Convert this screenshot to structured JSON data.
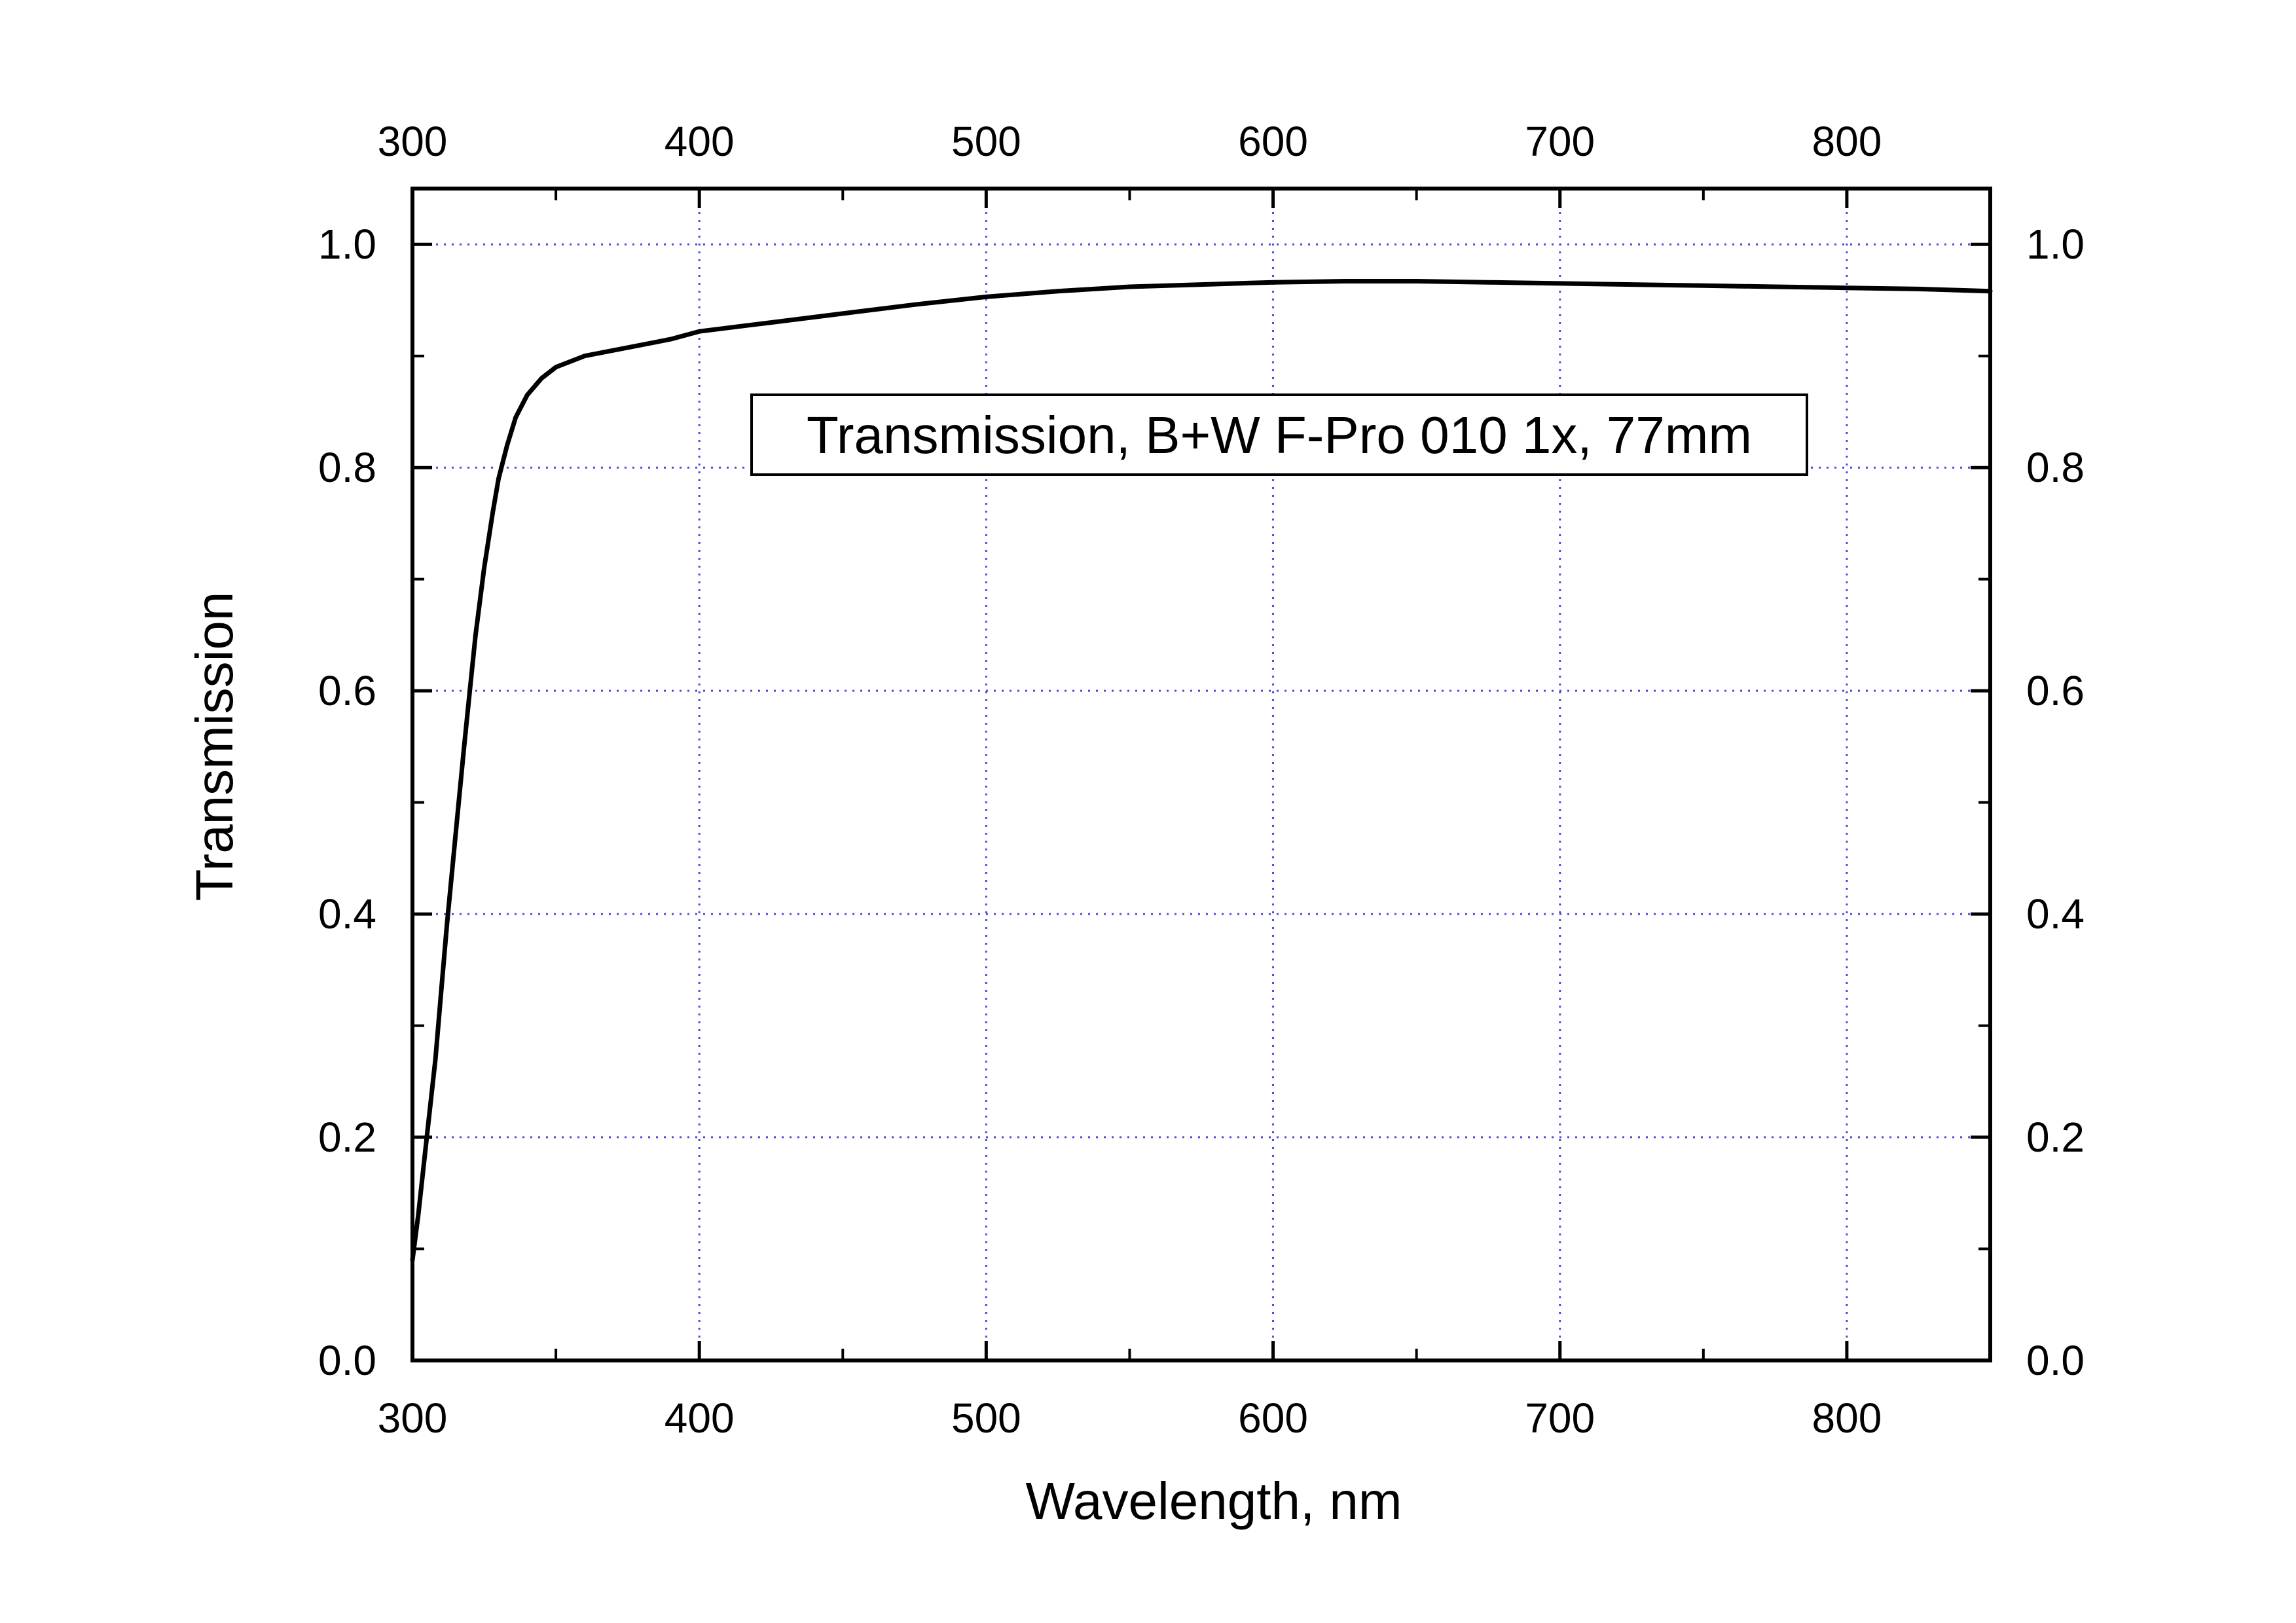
{
  "chart_data": {
    "type": "line",
    "title": "",
    "xlabel": "Wavelength, nm",
    "ylabel": "Transmission",
    "xlim": [
      300,
      850
    ],
    "ylim": [
      0.0,
      1.05
    ],
    "x_ticks": [
      300,
      400,
      500,
      600,
      700,
      800
    ],
    "x_tick_labels": [
      "300",
      "400",
      "500",
      "600",
      "700",
      "800"
    ],
    "top_x_tick_labels": [
      "300",
      "400",
      "500",
      "600",
      "700",
      "800"
    ],
    "y_ticks": [
      0.0,
      0.2,
      0.4,
      0.6,
      0.8,
      1.0
    ],
    "y_tick_labels": [
      "0.0",
      "0.2",
      "0.4",
      "0.6",
      "0.8",
      "1.0"
    ],
    "right_y_tick_labels": [
      "0.0",
      "0.2",
      "0.4",
      "0.6",
      "0.8",
      "1.0"
    ],
    "grid": true,
    "grid_style": "dotted",
    "grid_color": "#4a4adc",
    "line_color": "#000000",
    "legend": "none",
    "annotation": "Transmission, B+W F-Pro 010 1x, 77mm",
    "series": [
      {
        "x": [
          300,
          302,
          305,
          308,
          310,
          312,
          315,
          318,
          320,
          322,
          325,
          328,
          330,
          333,
          336,
          340,
          345,
          350,
          355,
          360,
          370,
          380,
          390,
          400,
          425,
          450,
          475,
          500,
          525,
          550,
          575,
          600,
          625,
          650,
          675,
          700,
          725,
          750,
          775,
          800,
          825,
          850
        ],
        "y": [
          0.09,
          0.13,
          0.2,
          0.27,
          0.33,
          0.39,
          0.47,
          0.55,
          0.6,
          0.65,
          0.71,
          0.76,
          0.79,
          0.82,
          0.845,
          0.865,
          0.88,
          0.89,
          0.895,
          0.9,
          0.905,
          0.91,
          0.915,
          0.922,
          0.93,
          0.938,
          0.946,
          0.953,
          0.958,
          0.962,
          0.964,
          0.966,
          0.967,
          0.967,
          0.966,
          0.965,
          0.964,
          0.963,
          0.962,
          0.961,
          0.96,
          0.958
        ]
      }
    ]
  }
}
